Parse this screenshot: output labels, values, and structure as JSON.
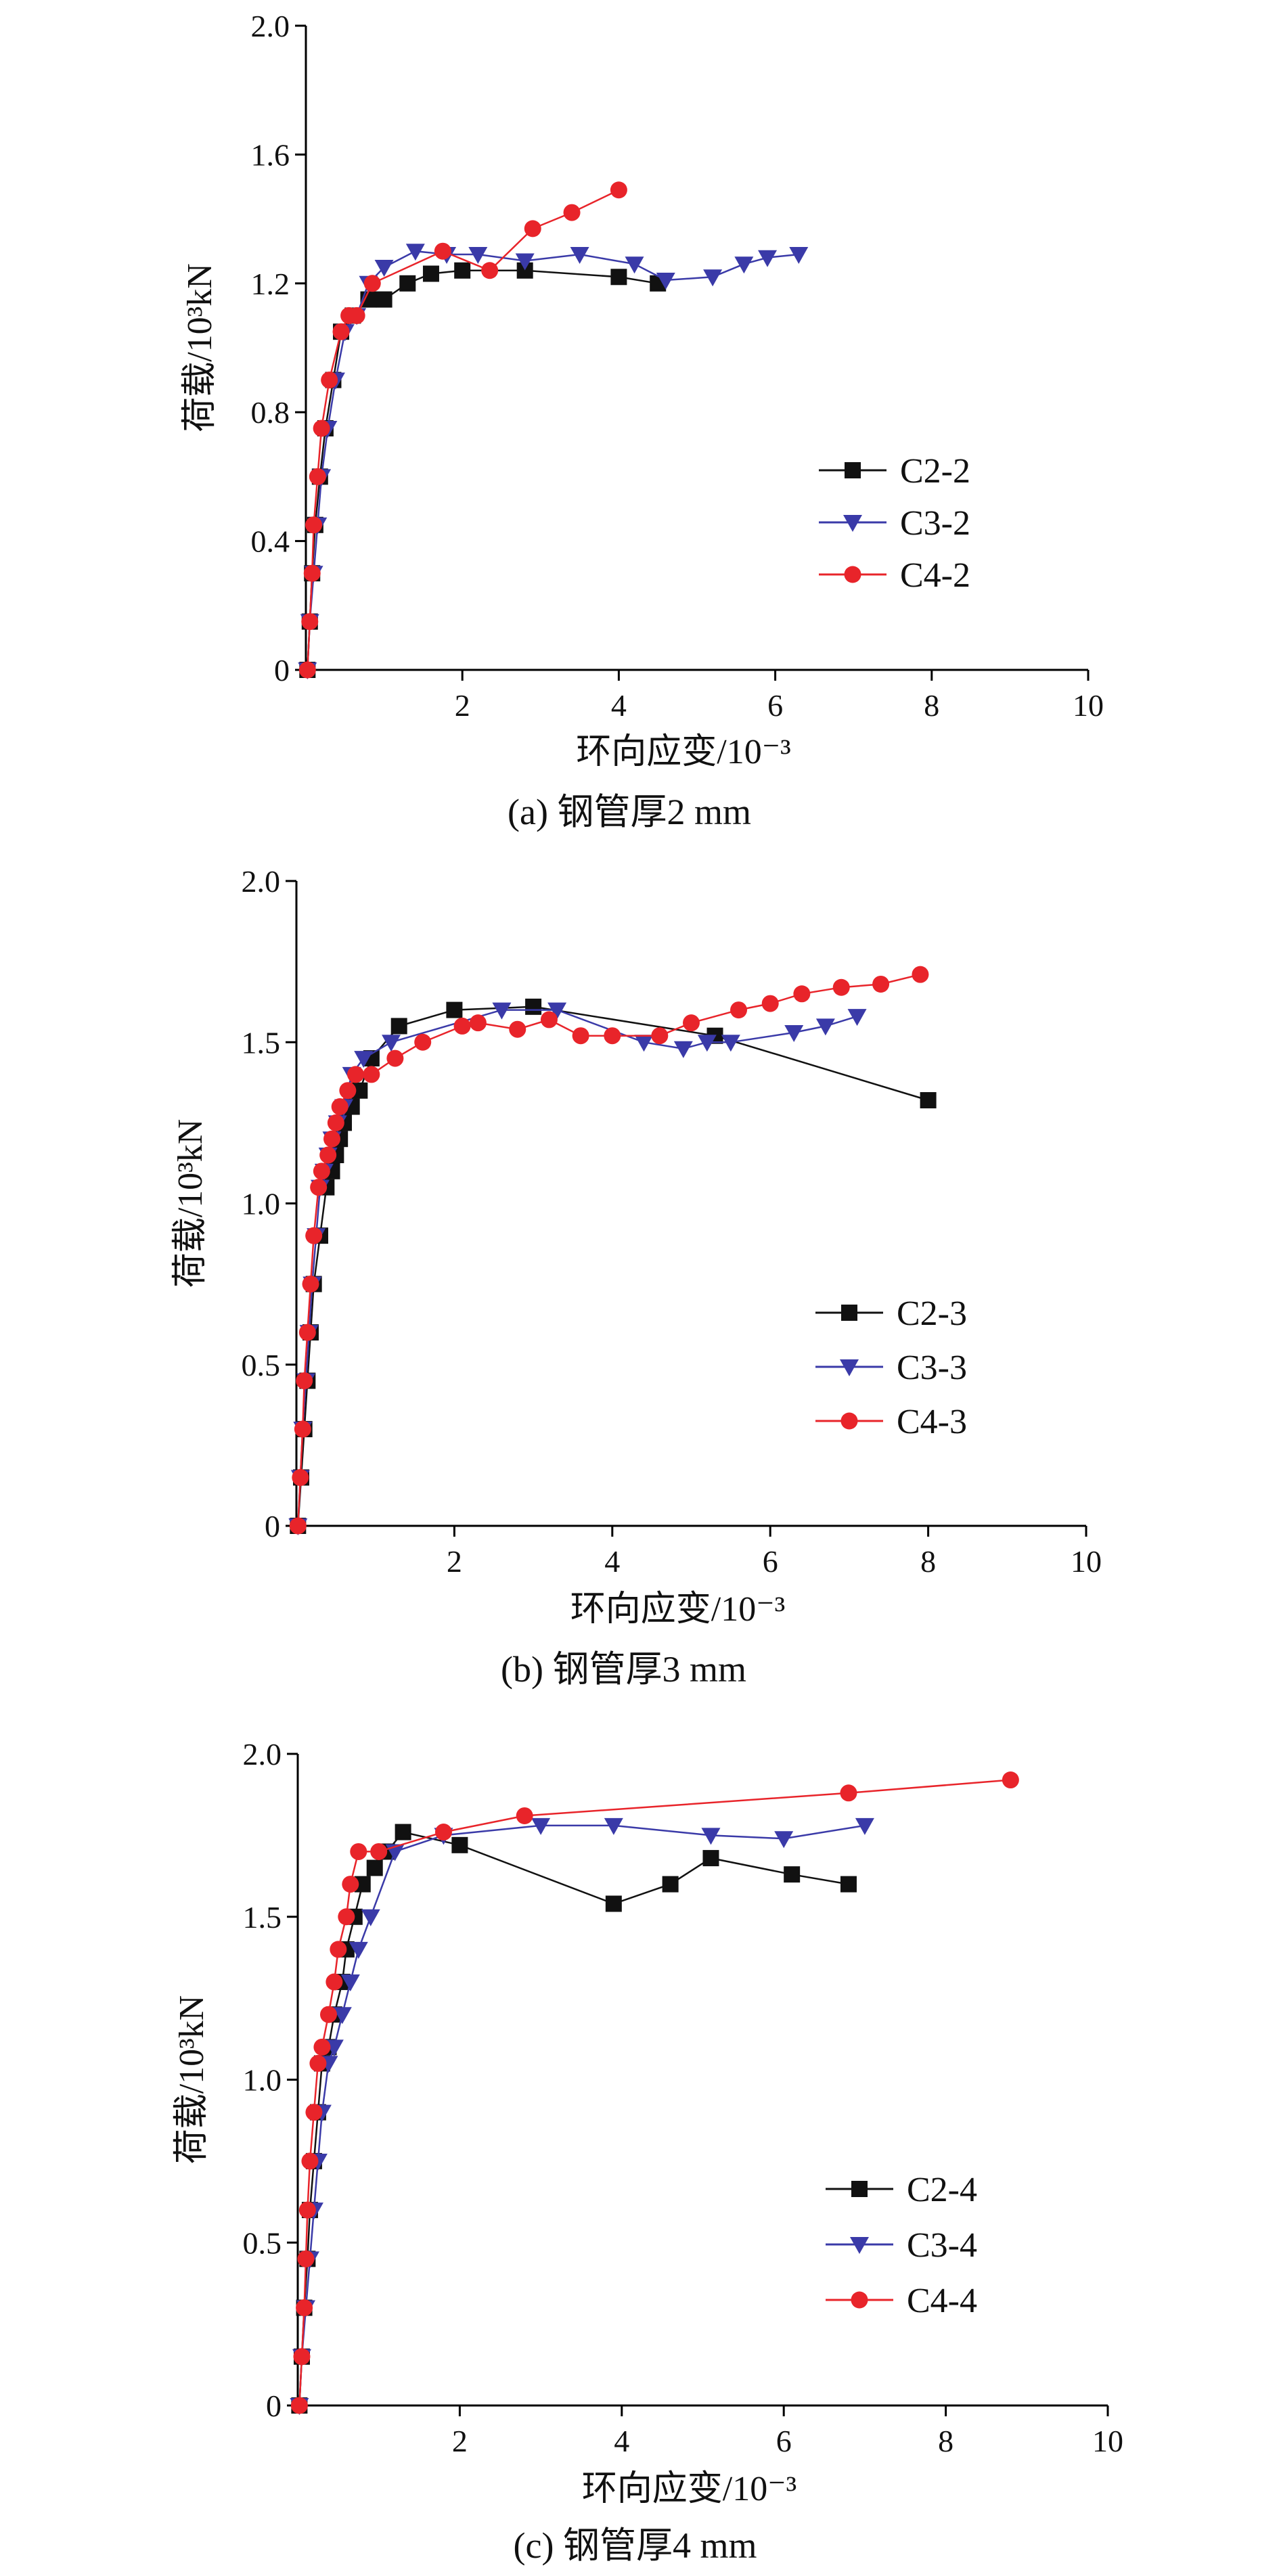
{
  "colors": {
    "C2": "#111111",
    "C3": "#3a3aa8",
    "C4": "#e8242a"
  },
  "chart_data": [
    {
      "type": "line",
      "caption": "(a) 钢管厚2 mm",
      "xlabel": "环向应变/10⁻³",
      "ylabel": "荷载/10³kN",
      "xlim": [
        0,
        10
      ],
      "ylim": [
        0,
        2.0
      ],
      "xticks": [
        2,
        4,
        6,
        8,
        10
      ],
      "xtick_labels": [
        "2",
        "4",
        "6",
        "8",
        "10"
      ],
      "yticks": [
        0,
        0.4,
        0.8,
        1.2,
        1.6,
        2.0
      ],
      "ytick_labels": [
        "0",
        "0.4",
        "0.8",
        "1.2",
        "1.6",
        "2.0"
      ],
      "series": [
        {
          "name": "C2-2",
          "marker": "square",
          "x": [
            0.02,
            0.05,
            0.08,
            0.12,
            0.18,
            0.25,
            0.35,
            0.45,
            0.6,
            0.8,
            1.0,
            1.3,
            1.6,
            2.0,
            2.8,
            4.0,
            4.5
          ],
          "y": [
            0,
            0.15,
            0.3,
            0.45,
            0.6,
            0.75,
            0.9,
            1.05,
            1.1,
            1.15,
            1.15,
            1.2,
            1.23,
            1.24,
            1.24,
            1.22,
            1.2
          ]
        },
        {
          "name": "C3-2",
          "marker": "triangle-down",
          "x": [
            0.02,
            0.05,
            0.1,
            0.15,
            0.2,
            0.28,
            0.38,
            0.5,
            0.65,
            0.8,
            1.0,
            1.4,
            1.8,
            2.2,
            2.8,
            3.5,
            4.2,
            4.6,
            5.2,
            5.6,
            5.9,
            6.3
          ],
          "y": [
            0,
            0.15,
            0.3,
            0.45,
            0.6,
            0.75,
            0.9,
            1.05,
            1.1,
            1.2,
            1.25,
            1.3,
            1.29,
            1.29,
            1.27,
            1.29,
            1.26,
            1.21,
            1.22,
            1.26,
            1.28,
            1.29
          ]
        },
        {
          "name": "C4-2",
          "marker": "circle",
          "x": [
            0.02,
            0.05,
            0.08,
            0.1,
            0.15,
            0.2,
            0.3,
            0.45,
            0.55,
            0.65,
            0.85,
            1.75,
            2.35,
            2.9,
            3.4,
            4.0
          ],
          "y": [
            0,
            0.15,
            0.3,
            0.45,
            0.6,
            0.75,
            0.9,
            1.05,
            1.1,
            1.1,
            1.2,
            1.3,
            1.24,
            1.37,
            1.42,
            1.49
          ]
        }
      ],
      "legend": [
        "C2-2",
        "C3-2",
        "C4-2"
      ]
    },
    {
      "type": "line",
      "caption": "(b) 钢管厚3 mm",
      "xlabel": "环向应变/10⁻³",
      "ylabel": "荷载/10³kN",
      "xlim": [
        0,
        10
      ],
      "ylim": [
        0,
        2.0
      ],
      "xticks": [
        2,
        4,
        6,
        8,
        10
      ],
      "xtick_labels": [
        "2",
        "4",
        "6",
        "8",
        "10"
      ],
      "yticks": [
        0,
        0.5,
        1.0,
        1.5,
        2.0
      ],
      "ytick_labels": [
        "0",
        "0.5",
        "1.0",
        "1.5",
        "2.0"
      ],
      "series": [
        {
          "name": "C2-3",
          "marker": "square",
          "x": [
            0.02,
            0.06,
            0.1,
            0.14,
            0.18,
            0.22,
            0.3,
            0.38,
            0.45,
            0.5,
            0.55,
            0.6,
            0.7,
            0.8,
            0.95,
            1.3,
            2.0,
            3.0,
            5.3,
            8.0
          ],
          "y": [
            0,
            0.15,
            0.3,
            0.45,
            0.6,
            0.75,
            0.9,
            1.05,
            1.1,
            1.15,
            1.2,
            1.25,
            1.3,
            1.35,
            1.45,
            1.55,
            1.6,
            1.61,
            1.52,
            1.32
          ]
        },
        {
          "name": "C3-3",
          "marker": "triangle-down",
          "x": [
            0.02,
            0.05,
            0.08,
            0.12,
            0.16,
            0.2,
            0.25,
            0.3,
            0.35,
            0.4,
            0.45,
            0.52,
            0.6,
            0.7,
            0.85,
            1.2,
            2.6,
            3.3,
            4.4,
            4.9,
            5.2,
            5.5,
            6.3,
            6.7,
            7.1
          ],
          "y": [
            0,
            0.15,
            0.3,
            0.45,
            0.6,
            0.75,
            0.9,
            1.05,
            1.1,
            1.15,
            1.2,
            1.25,
            1.3,
            1.4,
            1.45,
            1.5,
            1.6,
            1.6,
            1.5,
            1.48,
            1.5,
            1.5,
            1.53,
            1.55,
            1.58
          ]
        },
        {
          "name": "C4-3",
          "marker": "circle",
          "x": [
            0.02,
            0.05,
            0.08,
            0.1,
            0.14,
            0.18,
            0.22,
            0.28,
            0.32,
            0.4,
            0.45,
            0.5,
            0.55,
            0.65,
            0.75,
            0.95,
            1.25,
            1.6,
            2.1,
            2.3,
            2.8,
            3.2,
            3.6,
            4.0,
            4.6,
            5.0,
            5.6,
            6.0,
            6.4,
            6.9,
            7.4,
            7.9
          ],
          "y": [
            0,
            0.15,
            0.3,
            0.45,
            0.6,
            0.75,
            0.9,
            1.05,
            1.1,
            1.15,
            1.2,
            1.25,
            1.3,
            1.35,
            1.4,
            1.4,
            1.45,
            1.5,
            1.55,
            1.56,
            1.54,
            1.57,
            1.52,
            1.52,
            1.52,
            1.56,
            1.6,
            1.62,
            1.65,
            1.67,
            1.68,
            1.71
          ]
        }
      ],
      "legend": [
        "C2-3",
        "C3-3",
        "C4-3"
      ]
    },
    {
      "type": "line",
      "caption": "(c) 钢管厚4 mm",
      "xlabel": "环向应变/10⁻³",
      "ylabel": "荷载/10³kN",
      "xlim": [
        0,
        10
      ],
      "ylim": [
        0,
        2.0
      ],
      "xticks": [
        2,
        4,
        6,
        8,
        10
      ],
      "xtick_labels": [
        "2",
        "4",
        "6",
        "8",
        "10"
      ],
      "yticks": [
        0,
        0.5,
        1.0,
        1.5,
        2.0
      ],
      "ytick_labels": [
        "0",
        "0.5",
        "1.0",
        "1.5",
        "2.0"
      ],
      "series": [
        {
          "name": "C2-4",
          "marker": "square",
          "x": [
            0.02,
            0.05,
            0.08,
            0.12,
            0.15,
            0.2,
            0.25,
            0.3,
            0.38,
            0.45,
            0.55,
            0.6,
            0.7,
            0.8,
            0.95,
            1.1,
            1.3,
            2.0,
            3.9,
            4.6,
            5.1,
            6.1,
            6.8
          ],
          "y": [
            0,
            0.15,
            0.3,
            0.45,
            0.6,
            0.75,
            0.9,
            1.05,
            1.1,
            1.2,
            1.3,
            1.4,
            1.5,
            1.6,
            1.65,
            1.7,
            1.76,
            1.72,
            1.54,
            1.6,
            1.68,
            1.63,
            1.6
          ]
        },
        {
          "name": "C3-4",
          "marker": "triangle-down",
          "x": [
            0.02,
            0.05,
            0.1,
            0.15,
            0.2,
            0.25,
            0.3,
            0.38,
            0.45,
            0.55,
            0.65,
            0.75,
            0.9,
            1.2,
            1.8,
            3.0,
            3.9,
            5.1,
            6.0,
            7.0
          ],
          "y": [
            0,
            0.15,
            0.3,
            0.45,
            0.6,
            0.75,
            0.9,
            1.05,
            1.1,
            1.2,
            1.3,
            1.4,
            1.5,
            1.7,
            1.75,
            1.78,
            1.78,
            1.75,
            1.74,
            1.78
          ]
        },
        {
          "name": "C4-4",
          "marker": "circle",
          "x": [
            0.02,
            0.05,
            0.08,
            0.1,
            0.12,
            0.15,
            0.2,
            0.25,
            0.3,
            0.38,
            0.45,
            0.5,
            0.6,
            0.65,
            0.75,
            1.0,
            1.8,
            2.8,
            6.8,
            8.8
          ],
          "y": [
            0,
            0.15,
            0.3,
            0.45,
            0.6,
            0.75,
            0.9,
            1.05,
            1.1,
            1.2,
            1.3,
            1.4,
            1.5,
            1.6,
            1.7,
            1.7,
            1.76,
            1.81,
            1.88,
            1.92
          ]
        }
      ],
      "legend": [
        "C2-4",
        "C3-4",
        "C4-4"
      ]
    }
  ]
}
